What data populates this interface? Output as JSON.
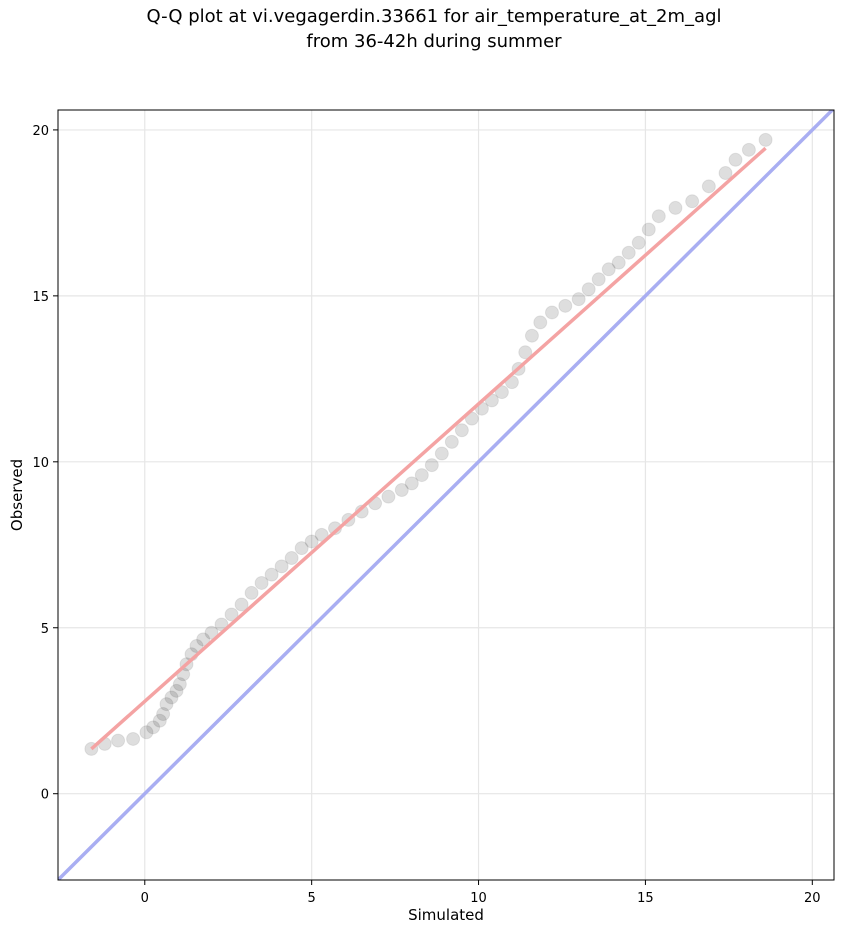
{
  "chart_data": {
    "type": "scatter",
    "title": [
      "Q-Q plot at vi.vegagerdin.33661 for air_temperature_at_2m_agl",
      "from 36-42h during summer"
    ],
    "x_label": "Simulated",
    "y_label": "Observed",
    "xlim": [
      -2.6,
      20.65
    ],
    "ylim": [
      -2.6,
      20.6
    ],
    "xticks": [
      0,
      5,
      10,
      15,
      20
    ],
    "yticks": [
      0,
      5,
      10,
      15,
      20
    ],
    "grid": true,
    "points": {
      "color": "#000000",
      "x": [
        -1.6,
        -1.2,
        -0.8,
        -0.35,
        0.05,
        0.25,
        0.45,
        0.55,
        0.65,
        0.8,
        0.95,
        1.05,
        1.15,
        1.25,
        1.4,
        1.55,
        1.75,
        2.0,
        2.3,
        2.6,
        2.9,
        3.2,
        3.5,
        3.8,
        4.1,
        4.4,
        4.7,
        5.0,
        5.3,
        5.7,
        6.1,
        6.5,
        6.9,
        7.3,
        7.7,
        8.0,
        8.3,
        8.6,
        8.9,
        9.2,
        9.5,
        9.8,
        10.1,
        10.4,
        10.7,
        11.0,
        11.2,
        11.4,
        11.6,
        11.85,
        12.2,
        12.6,
        13.0,
        13.3,
        13.6,
        13.9,
        14.2,
        14.5,
        14.8,
        15.1,
        15.4,
        15.9,
        16.4,
        16.9,
        17.4,
        17.7,
        18.1,
        18.6
      ],
      "y": [
        1.35,
        1.5,
        1.6,
        1.65,
        1.85,
        2.0,
        2.2,
        2.4,
        2.7,
        2.9,
        3.1,
        3.3,
        3.6,
        3.9,
        4.2,
        4.45,
        4.65,
        4.85,
        5.1,
        5.4,
        5.7,
        6.05,
        6.35,
        6.6,
        6.85,
        7.1,
        7.4,
        7.6,
        7.8,
        8.0,
        8.25,
        8.5,
        8.75,
        8.95,
        9.15,
        9.35,
        9.6,
        9.9,
        10.25,
        10.6,
        10.95,
        11.3,
        11.6,
        11.85,
        12.1,
        12.4,
        12.8,
        13.3,
        13.8,
        14.2,
        14.5,
        14.7,
        14.9,
        15.2,
        15.5,
        15.8,
        16.0,
        16.3,
        16.6,
        17.0,
        17.4,
        17.65,
        17.85,
        18.3,
        18.7,
        19.1,
        19.4,
        19.7
      ]
    },
    "fit_line": {
      "color": "#f4a3a3",
      "x": [
        -1.6,
        18.6
      ],
      "y": [
        1.35,
        19.45
      ]
    },
    "reference_line": {
      "color": "#a9aef2",
      "x": [
        -2.6,
        20.65
      ],
      "y": [
        -2.6,
        20.65
      ]
    }
  }
}
